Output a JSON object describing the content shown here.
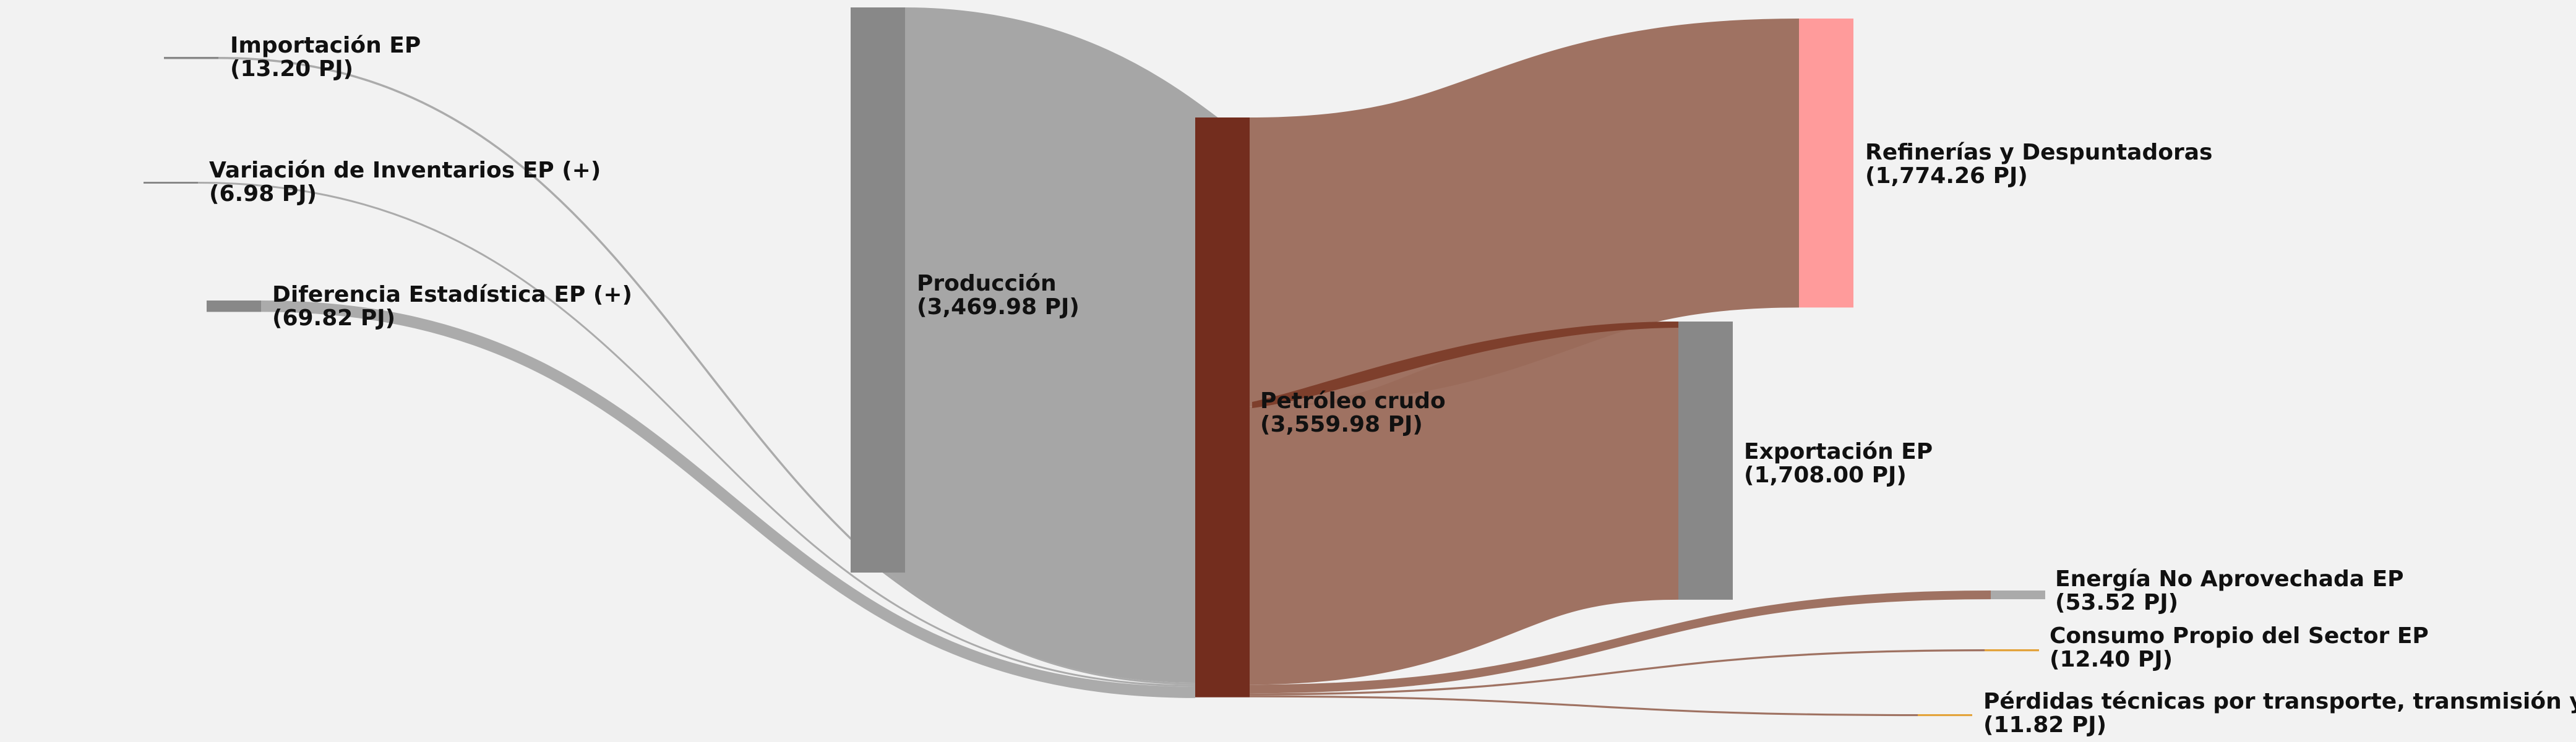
{
  "chart_data": {
    "type": "sankey",
    "units": "PJ",
    "nodes": [
      {
        "id": "importacion",
        "name": "Importación EP",
        "value_label": "(13.20 PJ)",
        "value": 13.2,
        "color": "#888888"
      },
      {
        "id": "variacion",
        "name": "Variación de Inventarios EP (+)",
        "value_label": "(6.98 PJ)",
        "value": 6.98,
        "color": "#888888"
      },
      {
        "id": "diferencia",
        "name": "Diferencia Estadística EP (+)",
        "value_label": "(69.82 PJ)",
        "value": 69.82,
        "color": "#888888"
      },
      {
        "id": "produccion",
        "name": "Producción",
        "value_label": "(3,469.98 PJ)",
        "value": 3469.98,
        "color": "#888888"
      },
      {
        "id": "petroleo",
        "name": "Petróleo crudo",
        "value_label": "(3,559.98 PJ)",
        "value": 3559.98,
        "color": "#732d1e"
      },
      {
        "id": "refinerias",
        "name": "Refinerías y Despuntadoras",
        "value_label": "(1,774.26 PJ)",
        "value": 1774.26,
        "color": "#ff9b9b"
      },
      {
        "id": "exportacion",
        "name": "Exportación EP",
        "value_label": "(1,708.00 PJ)",
        "value": 1708.0,
        "color": "#888888"
      },
      {
        "id": "noaprovechada",
        "name": "Energía No Aprovechada EP",
        "value_label": "(53.52 PJ)",
        "value": 53.52,
        "color": "#aaaaaa"
      },
      {
        "id": "consumo",
        "name": "Consumo Propio del Sector EP",
        "value_label": "(12.40 PJ)",
        "value": 12.4,
        "color": "#e3a33a"
      },
      {
        "id": "perdidas",
        "name": "Pérdidas técnicas por transporte, transmisión y distri",
        "value_label": "(11.82 PJ)",
        "value": 11.82,
        "color": "#e3a33a"
      }
    ],
    "links": [
      {
        "source": "produccion",
        "target": "petroleo",
        "value": 3469.98
      },
      {
        "source": "importacion",
        "target": "petroleo",
        "value": 13.2
      },
      {
        "source": "variacion",
        "target": "petroleo",
        "value": 6.98
      },
      {
        "source": "diferencia",
        "target": "petroleo",
        "value": 69.82
      },
      {
        "source": "petroleo",
        "target": "refinerias",
        "value": 1774.26
      },
      {
        "source": "petroleo",
        "target": "exportacion",
        "value": 1708.0
      },
      {
        "source": "petroleo",
        "target": "noaprovechada",
        "value": 53.52
      },
      {
        "source": "petroleo",
        "target": "consumo",
        "value": 12.4
      },
      {
        "source": "petroleo",
        "target": "perdidas",
        "value": 11.82
      }
    ],
    "colors": {
      "background": "#f2f2f2",
      "gray_link": "#a6a6a6",
      "brown_link": "#9a6a5a",
      "dark_brown_link": "#7e3f2c"
    }
  }
}
